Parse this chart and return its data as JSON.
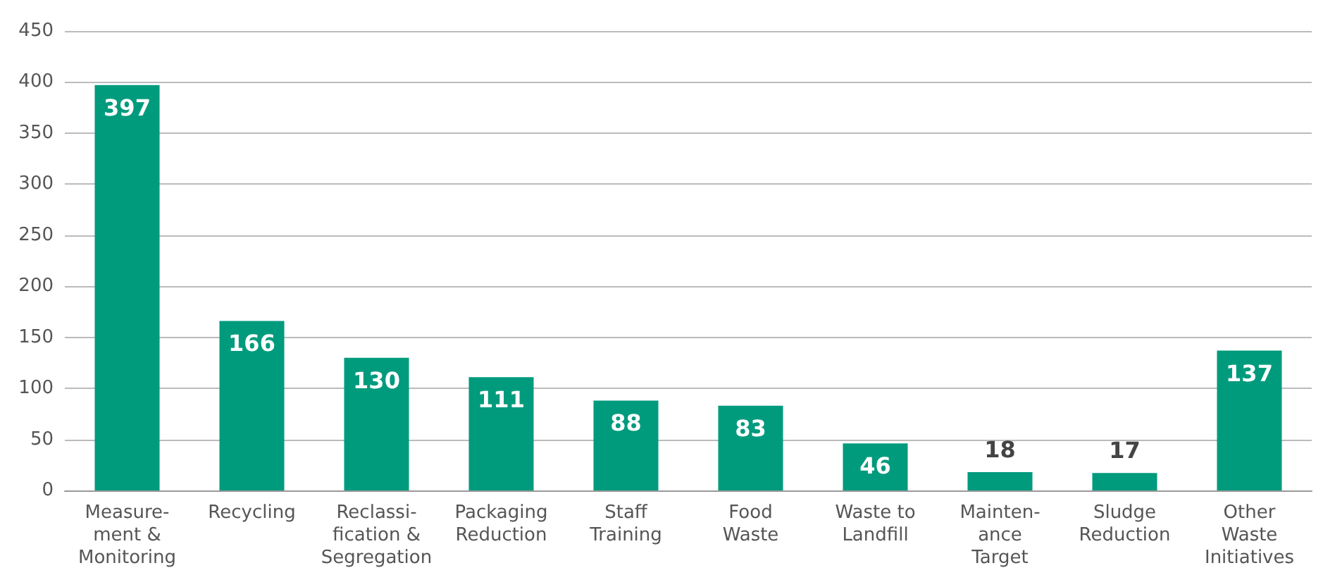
{
  "chart_data": {
    "type": "bar",
    "categories": [
      "Measure-\nment &\nMonitoring",
      "Recycling",
      "Reclassi-\nfication &\nSegregation",
      "Packaging\nReduction",
      "Staff\nTraining",
      "Food\nWaste",
      "Waste to\nLandfill",
      "Mainten-\nance\nTarget",
      "Sludge\nReduction",
      "Other\nWaste\nInitiatives"
    ],
    "values": [
      397,
      166,
      130,
      111,
      88,
      83,
      46,
      18,
      17,
      137
    ],
    "color": "#009b7d",
    "ylim": [
      0,
      450
    ],
    "yticks": [
      0,
      50,
      100,
      150,
      200,
      250,
      300,
      350,
      400,
      450
    ],
    "grid": "y",
    "data_labels": true
  }
}
